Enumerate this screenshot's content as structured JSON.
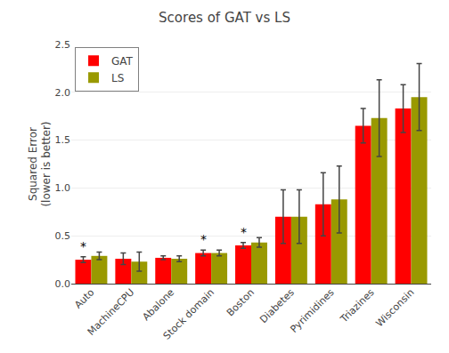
{
  "chart_data": {
    "type": "bar",
    "title": "Scores of GAT vs LS",
    "ylabel": "Squared Error\n(lower is better)",
    "categories": [
      "Auto",
      "MachineCPU",
      "Abalone",
      "Stock domain",
      "Boston",
      "Diabetes",
      "Pyrimidines",
      "Triazines",
      "Wisconsin"
    ],
    "series": [
      {
        "name": "GAT",
        "color": "#ff0000",
        "values": [
          0.25,
          0.26,
          0.27,
          0.32,
          0.4,
          0.7,
          0.83,
          1.65,
          1.83
        ],
        "errors": [
          0.03,
          0.06,
          0.02,
          0.03,
          0.03,
          0.28,
          0.33,
          0.18,
          0.25
        ]
      },
      {
        "name": "LS",
        "color": "#999900",
        "values": [
          0.29,
          0.23,
          0.26,
          0.32,
          0.43,
          0.7,
          0.88,
          1.73,
          1.95
        ],
        "errors": [
          0.04,
          0.1,
          0.03,
          0.03,
          0.05,
          0.28,
          0.35,
          0.4,
          0.35
        ]
      }
    ],
    "annotations": [
      {
        "text": "*",
        "category": "Auto",
        "series": "GAT"
      },
      {
        "text": "*",
        "category": "Stock domain",
        "series": "GAT"
      },
      {
        "text": "*",
        "category": "Boston",
        "series": "GAT"
      }
    ],
    "ylim": [
      0.0,
      2.5
    ],
    "yticks": [
      {
        "value": 0.0,
        "label": "0.0"
      },
      0.5,
      {
        "value": 1.0,
        "label": "1.0"
      },
      1.5,
      {
        "value": 2.0,
        "label": "2.0"
      },
      2.5
    ],
    "grid": true,
    "legend": "upper left"
  }
}
